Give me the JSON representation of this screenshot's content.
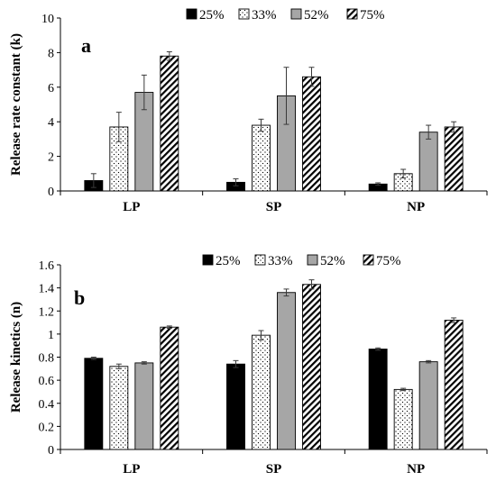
{
  "chart_data": [
    {
      "type": "bar",
      "panel_label": "a",
      "ylabel": "Release rate constant (k)",
      "ylim": [
        0,
        10
      ],
      "yticks": [
        0,
        2,
        4,
        6,
        8,
        10
      ],
      "categories": [
        "LP",
        "SP",
        "NP"
      ],
      "legend": {
        "placement": "top-right"
      },
      "series": [
        {
          "name": "25%",
          "pattern": "solid-black",
          "values": [
            0.6,
            0.5,
            0.4
          ],
          "errors": [
            0.4,
            0.2,
            0.07
          ]
        },
        {
          "name": "33%",
          "pattern": "dots",
          "values": [
            3.7,
            3.8,
            1.0
          ],
          "errors": [
            0.85,
            0.35,
            0.25
          ]
        },
        {
          "name": "52%",
          "pattern": "solid-gray",
          "values": [
            5.7,
            5.5,
            3.4
          ],
          "errors": [
            1.0,
            1.65,
            0.4
          ]
        },
        {
          "name": "75%",
          "pattern": "diagonal-hatch",
          "values": [
            7.8,
            6.6,
            3.7
          ],
          "errors": [
            0.25,
            0.55,
            0.3
          ]
        }
      ]
    },
    {
      "type": "bar",
      "panel_label": "b",
      "ylabel": "Release kinetics (n)",
      "ylim": [
        0,
        1.6
      ],
      "yticks": [
        "0",
        "0.2",
        "0.4",
        "0.6",
        "0.8",
        "1",
        "1.2",
        "1.4",
        "1.6"
      ],
      "categories": [
        "LP",
        "SP",
        "NP"
      ],
      "legend": {
        "placement": "top-right"
      },
      "series": [
        {
          "name": "25%",
          "pattern": "solid-black",
          "values": [
            0.79,
            0.74,
            0.87
          ],
          "errors": [
            0.01,
            0.03,
            0.01
          ]
        },
        {
          "name": "33%",
          "pattern": "dots",
          "values": [
            0.72,
            0.99,
            0.52
          ],
          "errors": [
            0.02,
            0.04,
            0.01
          ]
        },
        {
          "name": "52%",
          "pattern": "solid-gray",
          "values": [
            0.75,
            1.36,
            0.76
          ],
          "errors": [
            0.01,
            0.03,
            0.01
          ]
        },
        {
          "name": "75%",
          "pattern": "diagonal-hatch",
          "values": [
            1.06,
            1.43,
            1.12
          ],
          "errors": [
            0.01,
            0.04,
            0.02
          ]
        }
      ]
    }
  ],
  "colors": {
    "black": "#000000",
    "gray": "#a6a6a6",
    "white": "#ffffff",
    "axis": "#000000"
  }
}
